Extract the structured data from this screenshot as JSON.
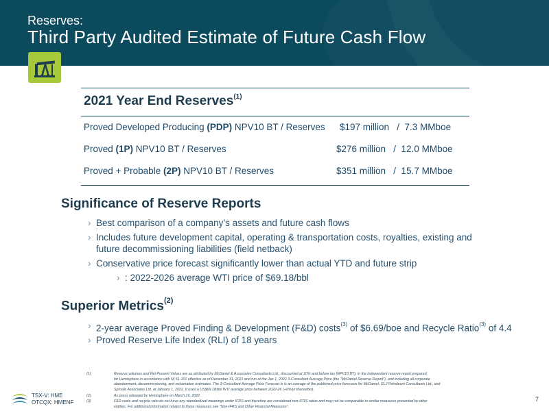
{
  "header": {
    "subtitle": "Reserves:",
    "title": "Third Party Audited Estimate of Future Cash Flow"
  },
  "icon": "oil-pumpjack-icon",
  "colors": {
    "header_bg": "#0c4a5e",
    "accent_green": "#a6c93a"
  },
  "reserves_table": {
    "heading": "2021 Year End Reserves",
    "heading_note": "(1)",
    "rows": [
      {
        "pre": "Proved Developed Producing ",
        "bold": "(PDP)",
        "post": " NPV10 BT / Reserves",
        "value": "$197 million   /  7.3 MMboe"
      },
      {
        "pre": "Proved ",
        "bold": "(1P)",
        "post": " NPV10 BT / Reserves",
        "value": "$276 million   /  12.0 MMboe"
      },
      {
        "pre": "Proved + Probable ",
        "bold": "(2P)",
        "post": " NPV10 BT / Reserves",
        "value": "$351 million   /  15.7 MMboe"
      }
    ]
  },
  "significance": {
    "heading": "Significance of Reserve Reports",
    "bullets": [
      "Best comparison of a company’s assets and future cash flows",
      "Includes future development capital, operating & transportation costs, royalties, existing and",
      "future decommissioning liabilities (field netback)",
      "Conservative price forecast significantly lower than actual YTD and future strip",
      ": 2022-2026 average WTI price of $69.18/bbl"
    ]
  },
  "metrics": {
    "heading": "Superior Metrics",
    "heading_note": "(2)",
    "b1": {
      "a": "2-year average Proved Finding & Development (F&D) costs",
      "n1": "(3)",
      "b": " of $6.69/boe and Recycle Ratio",
      "n2": "(3)",
      "c": " of 4.4"
    },
    "b2": "Proved Reserve Life Index (RLI) of 18 years"
  },
  "footnotes": [
    {
      "num": "(1)",
      "lines": [
        "Reserve volumes and Net Present Values are as attributed by McDaniel & Associates Consultants Ltd., discounted at 10% and before tax (NPV10 BT), in the independent reserve report prepared",
        "for Hemisphere in accordance with NI 51-101 effective as of December 31, 2021 and run at the Jan 1, 2022 3-Consultant Average Price (the \"McDaniel Reserve Report\"), and including all corporate",
        "abandonment, decommissioning, and reclamation estimates. The 3-Consultant Average Price Forecast is is an average of the published price forecasts for McDaniel, GLJ Petroleum Consultants Ltd., and",
        "Sproule Associates Ltd. at January 1, 2022. It uses a US$69.18/bbl WTI average price between 2022-26 (+2%/yr thereafter)."
      ]
    },
    {
      "num": "(2)",
      "lines": [
        "As press released by Hemisphere on March 16, 2022."
      ]
    },
    {
      "num": "(3)",
      "lines": [
        "F&D costs and recycle ratio do not have any standardized meanings under IFRS and therefore are considered non-IFRS ratios and may not be comparable to similar measures presented by other",
        "entities. For additional information related to these measures see \"Non-IFRS and Other Financial Measures\"."
      ]
    }
  ],
  "ticker": {
    "line1": "TSX-V: HME",
    "line2": "OTCQX: HMENF"
  },
  "page_number": "7"
}
